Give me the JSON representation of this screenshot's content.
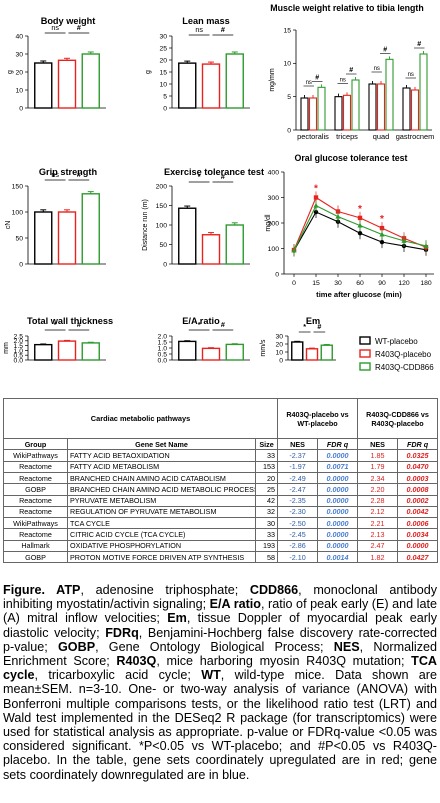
{
  "colors": {
    "wt": "#000000",
    "placebo": "#e8231f",
    "cdd": "#2e9a2e"
  },
  "legend": [
    "WT-placebo",
    "R403Q-placebo",
    "R403Q-CDD866"
  ],
  "chart_data": [
    {
      "id": "body_weight",
      "type": "bar",
      "title": "Body weight",
      "ylabel": "g",
      "ylim": [
        0,
        40
      ],
      "yticks": [
        "0",
        "10",
        "20",
        "30",
        "40"
      ],
      "categories": [
        "WT-placebo",
        "R403Q-placebo",
        "R403Q-CDD866"
      ],
      "values": [
        25,
        26.5,
        30
      ],
      "sig": [
        "ns",
        "#"
      ]
    },
    {
      "id": "lean_mass",
      "type": "bar",
      "title": "Lean mass",
      "ylabel": "g",
      "ylim": [
        0,
        30
      ],
      "yticks": [
        "0",
        "5",
        "10",
        "15",
        "20",
        "25",
        "30"
      ],
      "categories": [
        "WT-placebo",
        "R403Q-placebo",
        "R403Q-CDD866"
      ],
      "values": [
        18.7,
        18.3,
        22.5
      ],
      "sig": [
        "ns",
        "#"
      ]
    },
    {
      "id": "muscle_weight",
      "type": "bar",
      "title": "Muscle weight relative to tibia length",
      "ylabel": "mg/mm",
      "ylim": [
        0,
        15
      ],
      "yticks": [
        "0",
        "5",
        "10",
        "15"
      ],
      "categories": [
        "pectoralis",
        "triceps",
        "quad",
        "gastrocnem"
      ],
      "series": [
        {
          "name": "WT-placebo",
          "values": [
            4.8,
            5.0,
            6.9,
            6.3
          ]
        },
        {
          "name": "R403Q-placebo",
          "values": [
            4.8,
            5.2,
            6.9,
            6.0
          ]
        },
        {
          "name": "R403Q-CDD866",
          "values": [
            6.4,
            7.5,
            10.6,
            11.4
          ]
        }
      ],
      "sig_groups": [
        [
          "ns",
          "#"
        ],
        [
          "ns",
          "#"
        ],
        [
          "ns",
          "#"
        ],
        [
          "ns",
          "#"
        ]
      ]
    },
    {
      "id": "grip_strength",
      "type": "bar",
      "title": "Grip strength",
      "ylabel": "cN",
      "ylim": [
        0,
        150
      ],
      "yticks": [
        "0",
        "50",
        "100",
        "150"
      ],
      "categories": [
        "WT-placebo",
        "R403Q-placebo",
        "R403Q-CDD866"
      ],
      "values": [
        100,
        100,
        135
      ],
      "sig": [
        "ns",
        "#"
      ]
    },
    {
      "id": "exercise_tolerance",
      "type": "bar",
      "title": "Exercise tolerance test",
      "ylabel": "Distance run (m)",
      "ylim": [
        0,
        200
      ],
      "yticks": [
        "0",
        "50",
        "100",
        "150",
        "200"
      ],
      "categories": [
        "WT-placebo",
        "R403Q-placebo",
        "R403Q-CDD866"
      ],
      "values": [
        143,
        75,
        100
      ],
      "sig": [
        "*",
        "#"
      ]
    },
    {
      "id": "ogtt",
      "type": "line",
      "title": "Oral glucose tolerance test",
      "ylabel": "mg/dl",
      "xlabel": "time after glucose (min)",
      "ylim": [
        0,
        400
      ],
      "yticks": [
        "0",
        "100",
        "200",
        "300",
        "400"
      ],
      "x": [
        0,
        15,
        30,
        60,
        90,
        120,
        180
      ],
      "xticks": [
        "0",
        "15",
        "30",
        "60",
        "90",
        "120",
        "180"
      ],
      "series": [
        {
          "name": "WT-placebo",
          "values": [
            92,
            243,
            205,
            160,
            125,
            110,
            95
          ]
        },
        {
          "name": "R403Q-placebo",
          "values": [
            94,
            300,
            245,
            220,
            180,
            140,
            105
          ]
        },
        {
          "name": "R403Q-CDD866",
          "values": [
            92,
            268,
            225,
            190,
            155,
            130,
            110
          ]
        }
      ],
      "stars_at": [
        15,
        60,
        90
      ],
      "star": "*"
    },
    {
      "id": "total_wall_thickness",
      "type": "bar",
      "title": "Total wall thickness",
      "ylabel": "mm",
      "ylim": [
        0,
        2.5
      ],
      "yticks": [
        "0.0",
        "0.5",
        "1.0",
        "1.5",
        "2.0",
        "2.5"
      ],
      "categories": [
        "WT-placebo",
        "R403Q-placebo",
        "R403Q-CDD866"
      ],
      "values": [
        1.6,
        1.97,
        1.78
      ],
      "sig": [
        "*",
        "#"
      ]
    },
    {
      "id": "ea_ratio",
      "type": "bar",
      "title": "E/A ratio",
      "ylabel": "",
      "ylim": [
        0,
        2.0
      ],
      "yticks": [
        "0.0",
        "0.5",
        "1.0",
        "1.5",
        "2.0"
      ],
      "categories": [
        "WT-placebo",
        "R403Q-placebo",
        "R403Q-CDD866"
      ],
      "values": [
        1.55,
        0.97,
        1.3
      ],
      "sig": [
        "*",
        "#"
      ]
    },
    {
      "id": "em",
      "type": "bar",
      "title": "Em",
      "ylabel": "mm/s",
      "ylim": [
        0,
        30
      ],
      "yticks": [
        "0",
        "10",
        "20",
        "30"
      ],
      "categories": [
        "WT-placebo",
        "R403Q-placebo",
        "R403Q-CDD866"
      ],
      "values": [
        22.5,
        14,
        18.5
      ],
      "sig": [
        "*",
        "#"
      ]
    }
  ],
  "table": {
    "title": "Cardiac metabolic pathways",
    "group_header_1": "R403Q-placebo vs WT-placebo",
    "group_header_2": "R403Q-CDD866 vs R403Q-placebo",
    "columns": [
      "Group",
      "Gene Set Name",
      "Size",
      "NES",
      "FDR q",
      "NES",
      "FDR q"
    ],
    "rows": [
      [
        "WikiPathways",
        "FATTY ACID BETAOXIDATION",
        "33",
        "-2.37",
        "0.0000",
        "1.85",
        "0.0325"
      ],
      [
        "Reactome",
        "FATTY ACID METABOLISM",
        "153",
        "-1.97",
        "0.0071",
        "1.79",
        "0.0470"
      ],
      [
        "Reactome",
        "BRANCHED CHAIN AMINO ACID CATABOLISM",
        "20",
        "-2.49",
        "0.0000",
        "2.34",
        "0.0003"
      ],
      [
        "GOBP",
        "BRANCHED CHAIN AMINO ACID METABOLIC PROCESS",
        "25",
        "-2.47",
        "0.0000",
        "2.20",
        "0.0008"
      ],
      [
        "Reactome",
        "PYRUVATE METABOLISM",
        "42",
        "-2.35",
        "0.0000",
        "2.28",
        "0.0002"
      ],
      [
        "Reactome",
        "REGULATION OF PYRUVATE METABOLISM",
        "32",
        "-2.30",
        "0.0000",
        "2.12",
        "0.0042"
      ],
      [
        "WikiPathways",
        "TCA CYCLE",
        "30",
        "-2.50",
        "0.0000",
        "2.21",
        "0.0006"
      ],
      [
        "Reactome",
        "CITRIC ACID CYCLE (TCA CYCLE)",
        "33",
        "-2.45",
        "0.0000",
        "2.13",
        "0.0034"
      ],
      [
        "Hallmark",
        "OXIDATIVE PHOSPHORYLATION",
        "193",
        "-2.86",
        "0.0000",
        "2.47",
        "0.0000"
      ],
      [
        "GOBP",
        "PROTON MOTIVE FORCE DRIVEN ATP SYNTHESIS",
        "58",
        "-2.10",
        "0.0014",
        "1.82",
        "0.0427"
      ]
    ]
  },
  "caption": [
    {
      "b": true,
      "t": "Figure. ATP"
    },
    {
      "b": false,
      "t": ", adenosine triphosphate; "
    },
    {
      "b": true,
      "t": "CDD866"
    },
    {
      "b": false,
      "t": ", monoclonal antibody inhibiting myostatin/activin signaling; "
    },
    {
      "b": true,
      "t": "E/A ratio"
    },
    {
      "b": false,
      "t": ", ratio of peak early (E) and late (A) mitral inflow velocities; "
    },
    {
      "b": true,
      "t": "Em"
    },
    {
      "b": false,
      "t": ", tissue Doppler of myocardial peak early diastolic velocity; "
    },
    {
      "b": true,
      "t": "FDRq"
    },
    {
      "b": false,
      "t": ", Benjamini-Hochberg false discovery rate-corrected p-value; "
    },
    {
      "b": true,
      "t": "GOBP"
    },
    {
      "b": false,
      "t": ", Gene Ontology Biological Process; "
    },
    {
      "b": true,
      "t": "NES"
    },
    {
      "b": false,
      "t": ", Normalized Enrichment Score; "
    },
    {
      "b": true,
      "t": "R403Q"
    },
    {
      "b": false,
      "t": ", mice harboring myosin R403Q mutation; "
    },
    {
      "b": true,
      "t": "TCA cycle"
    },
    {
      "b": false,
      "t": ", tricarboxylic acid cycle; "
    },
    {
      "b": true,
      "t": "WT"
    },
    {
      "b": false,
      "t": ", wild-type mice. Data shown are mean±SEM. n=3-10. One- or two-way analysis of variance (ANOVA) with Bonferroni multiple comparisons tests, or the likelihood ratio test (LRT) and Wald test implemented in the DESeq2 R package (for transcriptomics) were used for statistical analysis as appropriate. p-value or FDRq-value <0.05 was considered significant. *P<0.05 vs WT-placebo; and #P<0.05 vs R403Q-placebo. In the table, gene sets coordinately upregulated are in red; gene sets coordinately downregulated are in blue."
    }
  ]
}
